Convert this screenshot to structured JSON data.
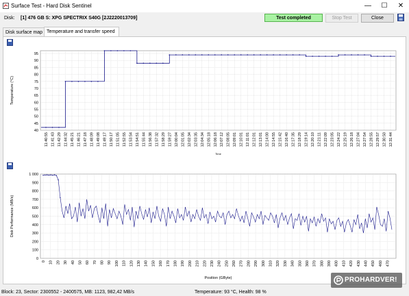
{
  "window": {
    "title": "Surface Test - Hard Disk Sentinel",
    "minimize": "—",
    "maximize": "☐",
    "close": "✕"
  },
  "toolbar": {
    "disk_label": "Disk:",
    "disk_value": "[1] 476 GB S: XPG SPECTRIX S40G [2J2220013709]",
    "status": "Test completed",
    "stop_label": "Stop Test",
    "close_label": "Close"
  },
  "tabs": [
    {
      "label": "Disk surface map",
      "active": false
    },
    {
      "label": "Temperature and transfer speed",
      "active": true
    }
  ],
  "statusbar": {
    "left": "Block: 23, Sector: 2300552 - 2400575, MB: 1123, 982,42 MB/s",
    "right": "Temperature: 93  °C,  Health: 98 %"
  },
  "watermark": "PROHARDVER!",
  "colors": {
    "status_bg": "#a9f2a3",
    "series": "#1a1a8c",
    "grid": "#d0d0d0"
  },
  "chart_data": [
    {
      "type": "line",
      "ylabel": "Temperature (°C)",
      "xlabel": "Time",
      "ylim": [
        40,
        97
      ],
      "yticks": [
        40,
        45,
        50,
        55,
        60,
        65,
        70,
        75,
        80,
        85,
        90,
        95
      ],
      "categories": [
        "11:40:55",
        "11:41:43",
        "11:42:29",
        "11:44:32",
        "11:45:21",
        "11:46:21",
        "11:47:18",
        "11:48:09",
        "11:49:08",
        "11:49:17",
        "11:50:17",
        "11:51:05",
        "11:52:55",
        "11:53:54",
        "11:54:51",
        "11:55:44",
        "11:56:38",
        "11:57:32",
        "11:58:29",
        "11:59:27",
        "12:00:04",
        "12:01:05",
        "12:02:34",
        "12:03:35",
        "12:04:34",
        "12:05:18",
        "12:06:18",
        "12:07:12",
        "12:08:05",
        "12:09:01",
        "12:10:01",
        "12:11:01",
        "12:12:01",
        "12:13:01",
        "12:14:00",
        "12:14:55",
        "12:15:42",
        "12:16:40",
        "12:17:35",
        "12:18:29",
        "12:19:14",
        "12:20:10",
        "12:21:11",
        "12:22:09",
        "12:23:05",
        "12:24:22",
        "12:25:19",
        "12:26:18",
        "12:27:04",
        "12:27:54",
        "12:28:55",
        "12:29:57",
        "12:30:50",
        "12:31:44"
      ],
      "series": [
        {
          "values": [
            42,
            42,
            42,
            75,
            75,
            75,
            75,
            75,
            75,
            97,
            97,
            97,
            97,
            97,
            88,
            88,
            88,
            88,
            88,
            94,
            94,
            94,
            94,
            94,
            94,
            94,
            94,
            94,
            94,
            94,
            94,
            94,
            94,
            94,
            94,
            94,
            94,
            94,
            94,
            94,
            93,
            93,
            93,
            93,
            93,
            94,
            94,
            94,
            94,
            94,
            93,
            93,
            93,
            93
          ]
        }
      ]
    },
    {
      "type": "line",
      "ylabel": "Disk Performance (MB/s)",
      "xlabel": "Position (GByte)",
      "ylim": [
        0,
        1000
      ],
      "yticks": [
        0,
        100,
        200,
        300,
        400,
        500,
        600,
        700,
        800,
        900,
        1000
      ],
      "ytick_labels": [
        "0",
        "100",
        "200",
        "300",
        "400",
        "500",
        "600",
        "700",
        "800",
        "900",
        "1 000"
      ],
      "xlim": [
        0,
        476
      ],
      "xticks": [
        0,
        10,
        20,
        30,
        40,
        50,
        60,
        70,
        80,
        90,
        100,
        110,
        120,
        130,
        140,
        150,
        160,
        170,
        180,
        190,
        200,
        210,
        220,
        230,
        240,
        250,
        260,
        270,
        280,
        290,
        300,
        310,
        320,
        330,
        340,
        350,
        360,
        370,
        380,
        390,
        400,
        410,
        420,
        430,
        440,
        450,
        460,
        470
      ],
      "series": [
        {
          "values": [
            985,
            988,
            990,
            987,
            990,
            985,
            990,
            982,
            930,
            720,
            560,
            480,
            620,
            530,
            650,
            470,
            500,
            610,
            430,
            660,
            500,
            590,
            470,
            700,
            560,
            630,
            480,
            590,
            620,
            510,
            420,
            600,
            470,
            650,
            380,
            580,
            480,
            590,
            530,
            470,
            560,
            500,
            400,
            640,
            520,
            580,
            450,
            610,
            370,
            560,
            470,
            620,
            530,
            460,
            580,
            490,
            600,
            420,
            550,
            470,
            620,
            500,
            440,
            590,
            520,
            380,
            610,
            470,
            560,
            500,
            420,
            590,
            480,
            520,
            450,
            610,
            500,
            560,
            430,
            520,
            470,
            580,
            500,
            450,
            600,
            480,
            520,
            410,
            550,
            470,
            500,
            430,
            560,
            500,
            480,
            540,
            400,
            520,
            560,
            480,
            520,
            470,
            590,
            510,
            440,
            500,
            420,
            560,
            470,
            380,
            540,
            490,
            430,
            520,
            470,
            560,
            400,
            510,
            480,
            450,
            540,
            500,
            420,
            520,
            360,
            480,
            540,
            450,
            510,
            400,
            480,
            530,
            350,
            470,
            450,
            530,
            390,
            500,
            430,
            500,
            320,
            470,
            420,
            490,
            380,
            470,
            420,
            530,
            440,
            480,
            310,
            470,
            410,
            440,
            340,
            450,
            480,
            380,
            440,
            310,
            420,
            460,
            390,
            310,
            460,
            400,
            520,
            350,
            420,
            300,
            470,
            360,
            530,
            430,
            480,
            340,
            610,
            520,
            400,
            380,
            470,
            320,
            560,
            480,
            340
          ]
        }
      ]
    }
  ]
}
